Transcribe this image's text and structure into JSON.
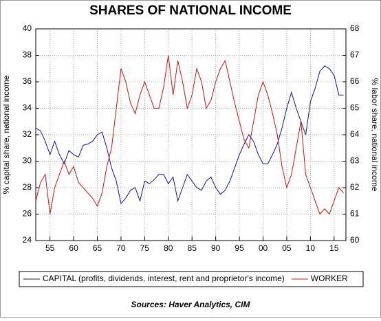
{
  "chart_data": {
    "type": "line",
    "title": "SHARES OF NATIONAL INCOME",
    "ylabel": "% capital share, national income",
    "y2label": "% labor share, national income",
    "source": "Sources:  Haver Analytics, CIM",
    "x": [
      1952,
      1953,
      1954,
      1955,
      1956,
      1957,
      1958,
      1959,
      1960,
      1961,
      1962,
      1963,
      1964,
      1965,
      1966,
      1967,
      1968,
      1969,
      1970,
      1971,
      1972,
      1973,
      1974,
      1975,
      1976,
      1977,
      1978,
      1979,
      1980,
      1981,
      1982,
      1983,
      1984,
      1985,
      1986,
      1987,
      1988,
      1989,
      1990,
      1991,
      1992,
      1993,
      1994,
      1995,
      1996,
      1997,
      1998,
      1999,
      2000,
      2001,
      2002,
      2003,
      2004,
      2005,
      2006,
      2007,
      2008,
      2009,
      2010,
      2011,
      2012,
      2013,
      2014,
      2015,
      2016,
      2017
    ],
    "series": [
      {
        "name": "CAPITAL (profits, dividends, interest, rent and proprietor's income)",
        "color": "#1010a0",
        "axis": "y",
        "values": [
          32.5,
          32.3,
          31.5,
          30.5,
          31.5,
          30.5,
          29.8,
          30.8,
          30.5,
          30.3,
          31.2,
          31.3,
          31.5,
          32.0,
          32.2,
          31.0,
          29.5,
          28.5,
          26.8,
          27.2,
          27.8,
          28.0,
          27.0,
          28.5,
          28.3,
          28.6,
          29.0,
          29.0,
          28.3,
          28.8,
          27.0,
          28.0,
          29.0,
          28.5,
          28.0,
          27.8,
          28.5,
          28.8,
          28.0,
          27.5,
          27.8,
          28.5,
          29.5,
          30.5,
          31.3,
          32.0,
          31.5,
          30.5,
          29.8,
          29.8,
          30.5,
          31.3,
          32.5,
          34.0,
          35.2,
          34.0,
          33.0,
          32.0,
          34.5,
          35.5,
          36.8,
          37.2,
          37.0,
          36.5,
          35.0,
          35.0
        ]
      },
      {
        "name": "WORKER",
        "color": "#d01010",
        "axis": "y2",
        "values": [
          61.5,
          62.2,
          62.5,
          61.0,
          62.0,
          62.5,
          63.0,
          62.5,
          62.8,
          62.2,
          62.0,
          61.8,
          61.6,
          61.3,
          61.8,
          62.8,
          63.5,
          65.0,
          66.5,
          66.0,
          65.2,
          64.8,
          65.5,
          66.0,
          65.5,
          65.0,
          65.0,
          65.8,
          67.0,
          65.5,
          66.8,
          66.0,
          65.0,
          65.5,
          66.5,
          66.0,
          65.0,
          65.3,
          66.0,
          66.5,
          66.8,
          66.0,
          65.2,
          64.5,
          63.8,
          63.5,
          64.5,
          65.5,
          66.0,
          65.5,
          64.8,
          64.0,
          62.8,
          62.0,
          62.5,
          63.5,
          64.5,
          62.5,
          62.0,
          61.5,
          61.0,
          61.2,
          61.0,
          61.5,
          62.0,
          61.8
        ]
      }
    ],
    "xlim": [
      1952,
      2017.5
    ],
    "xticks": [
      {
        "value": 1955,
        "label": "55"
      },
      {
        "value": 1960,
        "label": "60"
      },
      {
        "value": 1965,
        "label": "65"
      },
      {
        "value": 1970,
        "label": "70"
      },
      {
        "value": 1975,
        "label": "75"
      },
      {
        "value": 1980,
        "label": "80"
      },
      {
        "value": 1985,
        "label": "85"
      },
      {
        "value": 1990,
        "label": "90"
      },
      {
        "value": 1995,
        "label": "95"
      },
      {
        "value": 2000,
        "label": "00"
      },
      {
        "value": 2005,
        "label": "05"
      },
      {
        "value": 2010,
        "label": "10"
      },
      {
        "value": 2015,
        "label": "15"
      }
    ],
    "ylim": [
      24,
      40
    ],
    "yticks": [
      24,
      26,
      28,
      30,
      32,
      34,
      36,
      38,
      40
    ],
    "y2lim": [
      60,
      68
    ],
    "y2ticks": [
      60,
      61,
      62,
      63,
      64,
      65,
      66,
      67,
      68
    ],
    "grid": true
  }
}
